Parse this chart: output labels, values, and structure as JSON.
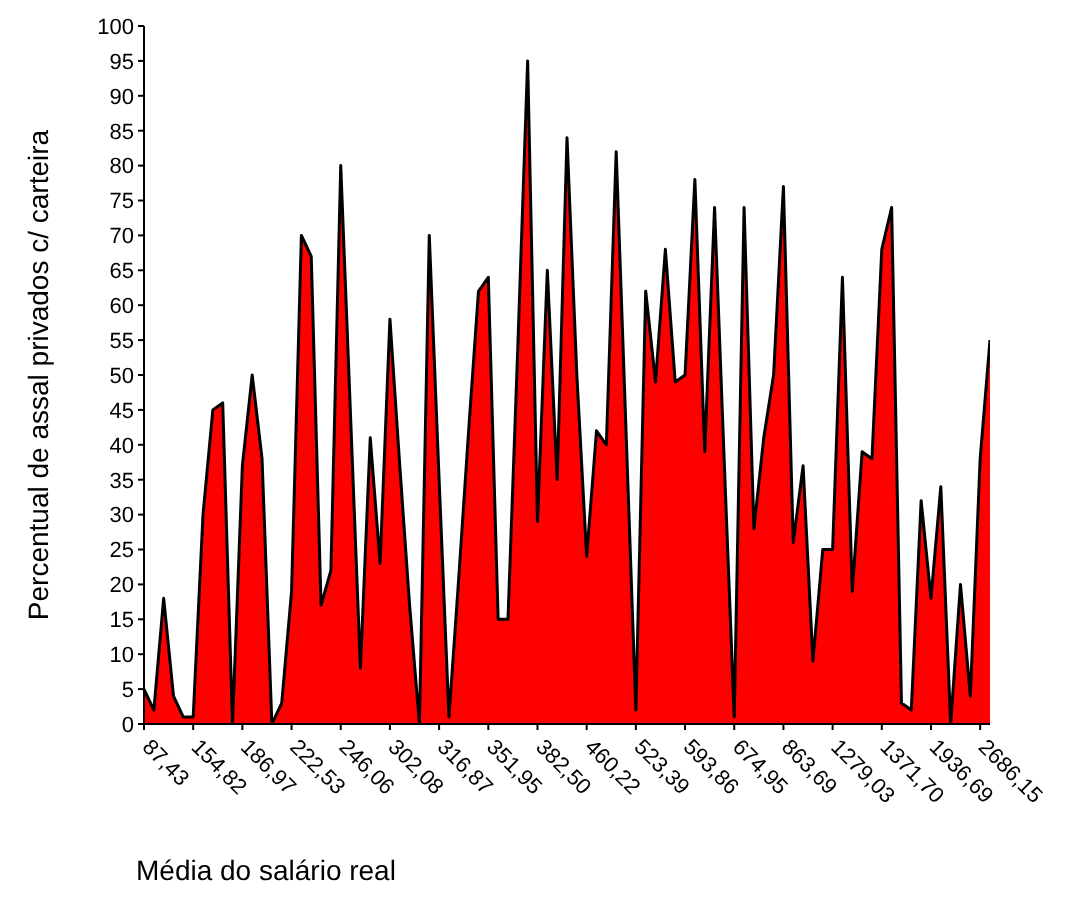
{
  "chart_data": {
    "type": "area",
    "xlabel": "Média do salário real",
    "ylabel": "Percentual de assal privados c/ carteira",
    "categories": [
      "87,43",
      null,
      null,
      null,
      null,
      "154,82",
      null,
      null,
      null,
      null,
      "186,97",
      null,
      null,
      null,
      null,
      "222,53",
      null,
      null,
      null,
      null,
      "246,06",
      null,
      null,
      null,
      null,
      "302,08",
      null,
      null,
      null,
      null,
      "316,87",
      null,
      null,
      null,
      null,
      "351,95",
      null,
      null,
      null,
      null,
      "382,50",
      null,
      null,
      null,
      null,
      "460,22",
      null,
      null,
      null,
      null,
      "523,39",
      null,
      null,
      null,
      null,
      "593,86",
      null,
      null,
      null,
      null,
      "674,95",
      null,
      null,
      null,
      null,
      "863,69",
      null,
      null,
      null,
      null,
      "1279,03",
      null,
      null,
      null,
      null,
      "1371,70",
      null,
      null,
      null,
      null,
      "1936,69",
      null,
      null,
      null,
      null,
      "2686,15",
      null
    ],
    "values": [
      5,
      2,
      18,
      4,
      1,
      1,
      30,
      45,
      46,
      0,
      37,
      50,
      38,
      0,
      3,
      19,
      70,
      67,
      17,
      22,
      80,
      44,
      8,
      41,
      23,
      58,
      37,
      17,
      0,
      70,
      35,
      1,
      21,
      42,
      62,
      64,
      15,
      15,
      54,
      95,
      29,
      65,
      35,
      84,
      50,
      24,
      42,
      40,
      82,
      42,
      2,
      62,
      49,
      68,
      49,
      50,
      78,
      39,
      74,
      37,
      1,
      74,
      28,
      41,
      50,
      77,
      26,
      37,
      9,
      25,
      25,
      64,
      19,
      39,
      38,
      68,
      74,
      3,
      2,
      32,
      18,
      34,
      0,
      20,
      4,
      38,
      55
    ],
    "color": "#ff0000",
    "ylim": [
      0,
      100
    ],
    "yticks": [
      0,
      5,
      10,
      15,
      20,
      25,
      30,
      35,
      40,
      45,
      50,
      55,
      60,
      65,
      70,
      75,
      80,
      85,
      90,
      95,
      100
    ]
  }
}
